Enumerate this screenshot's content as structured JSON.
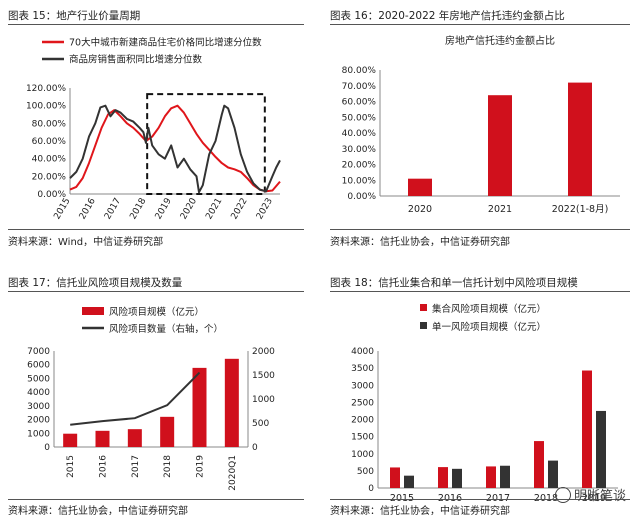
{
  "panels": [
    {
      "title": "图表 15：地产行业价量周期",
      "source": "资料来源：Wind，中信证券研究部",
      "chart_data": {
        "type": "line",
        "legend": [
          "70大中城市新建商品住宅价格同比增速分位数",
          "商品房销售面积同比增速分位数"
        ],
        "legend_placement": "top-left",
        "x_ticks": [
          "2015",
          "2016",
          "2017",
          "2018",
          "2019",
          "2020",
          "2021",
          "2022",
          "2023"
        ],
        "y_ticks": [
          "0.00%",
          "20.00%",
          "40.00%",
          "60.00%",
          "80.00%",
          "100.00%",
          "120.00%"
        ],
        "ylim": [
          0,
          120
        ],
        "series": [
          {
            "name": "70大中城市新建商品住宅价格同比增速分位数",
            "color": "#e0161b",
            "x": [
              2015.0,
              2015.25,
              2015.5,
              2015.75,
              2016.0,
              2016.25,
              2016.5,
              2016.75,
              2017.0,
              2017.25,
              2017.5,
              2017.75,
              2018.0,
              2018.25,
              2018.5,
              2018.75,
              2019.0,
              2019.25,
              2019.5,
              2019.75,
              2020.0,
              2020.25,
              2020.5,
              2020.75,
              2021.0,
              2021.25,
              2021.5,
              2021.75,
              2022.0,
              2022.25,
              2022.5,
              2022.75,
              2023.0,
              2023.3
            ],
            "y": [
              5,
              8,
              18,
              35,
              55,
              75,
              90,
              95,
              88,
              80,
              75,
              68,
              60,
              65,
              75,
              88,
              97,
              100,
              92,
              80,
              68,
              58,
              50,
              42,
              35,
              30,
              28,
              25,
              18,
              10,
              5,
              3,
              4,
              14
            ]
          },
          {
            "name": "商品房销售面积同比增速分位数",
            "color": "#333333",
            "x": [
              2015.0,
              2015.25,
              2015.5,
              2015.75,
              2016.0,
              2016.2,
              2016.4,
              2016.6,
              2016.8,
              2017.0,
              2017.25,
              2017.5,
              2017.75,
              2017.9,
              2018.0,
              2018.1,
              2018.25,
              2018.5,
              2018.75,
              2019.0,
              2019.25,
              2019.5,
              2019.75,
              2020.0,
              2020.1,
              2020.25,
              2020.5,
              2020.75,
              2021.0,
              2021.1,
              2021.25,
              2021.5,
              2021.75,
              2022.0,
              2022.25,
              2022.5,
              2022.75,
              2023.0,
              2023.15,
              2023.3
            ],
            "y": [
              18,
              25,
              40,
              65,
              80,
              98,
              100,
              88,
              95,
              92,
              85,
              82,
              75,
              70,
              58,
              75,
              55,
              45,
              40,
              55,
              30,
              40,
              28,
              20,
              2,
              10,
              45,
              60,
              90,
              100,
              97,
              75,
              45,
              25,
              12,
              5,
              3,
              20,
              30,
              38
            ]
          }
        ],
        "annotations": [
          "dashed rectangle highlighting 2018 to mid-2022"
        ]
      }
    },
    {
      "title": "图表 16：2020-2022 年房地产信托违约金额占比",
      "source": "资料来源：信托业协会，中信证券研究部",
      "chart_data": {
        "type": "bar",
        "title": "房地产信托违约金额占比",
        "categories": [
          "2020",
          "2021",
          "2022(1-8月)"
        ],
        "values": [
          11,
          64,
          72
        ],
        "color": "#d0101c",
        "y_ticks": [
          "0.00%",
          "10.00%",
          "20.00%",
          "30.00%",
          "40.00%",
          "50.00%",
          "60.00%",
          "70.00%",
          "80.00%"
        ],
        "ylim": [
          0,
          80
        ]
      }
    },
    {
      "title": "图表 17：信托业风险项目规模及数量",
      "source": "资料来源：信托业协会，中信证券研究部",
      "chart_data": {
        "type": "bar",
        "categories": [
          "2015",
          "2016",
          "2017",
          "2018",
          "2019",
          "2020Q1"
        ],
        "series": [
          {
            "name": "风险项目规模（亿元）",
            "type": "bar",
            "axis": "left",
            "color": "#d0101c",
            "values": [
              970,
              1180,
              1300,
              2200,
              5770,
              6430
            ]
          },
          {
            "name": "风险项目数量（右轴，个）",
            "type": "line",
            "axis": "right",
            "color": "#333333",
            "values": [
              465,
              540,
              600,
              870,
              1550,
              null
            ]
          }
        ],
        "y_ticks_left": [
          "0",
          "1000",
          "2000",
          "3000",
          "4000",
          "5000",
          "6000",
          "7000"
        ],
        "ylim_left": [
          0,
          7000
        ],
        "y_ticks_right": [
          "0",
          "500",
          "1000",
          "1500",
          "2000"
        ],
        "ylim_right": [
          0,
          2000
        ],
        "legend_placement": "top-left"
      }
    },
    {
      "title": "图表 18：信托业集合和单一信托计划中风险项目规模",
      "source": "资料来源：信托业协会，中信证券研究部",
      "chart_data": {
        "type": "bar",
        "categories": [
          "2015",
          "2016",
          "2017",
          "2018",
          "2019"
        ],
        "series": [
          {
            "name": "集合风险项目规模（亿元）",
            "color": "#d0101c",
            "values": [
              600,
              610,
              630,
              1370,
              3430
            ]
          },
          {
            "name": "单一风险项目规模（亿元）",
            "color": "#333333",
            "values": [
              360,
              560,
              650,
              800,
              2250
            ]
          }
        ],
        "y_ticks": [
          "0",
          "500",
          "1000",
          "1500",
          "2000",
          "2500",
          "3000",
          "3500",
          "4000"
        ],
        "ylim": [
          0,
          4000
        ],
        "legend_placement": "top-left"
      }
    }
  ],
  "watermark": "明晰笔谈"
}
